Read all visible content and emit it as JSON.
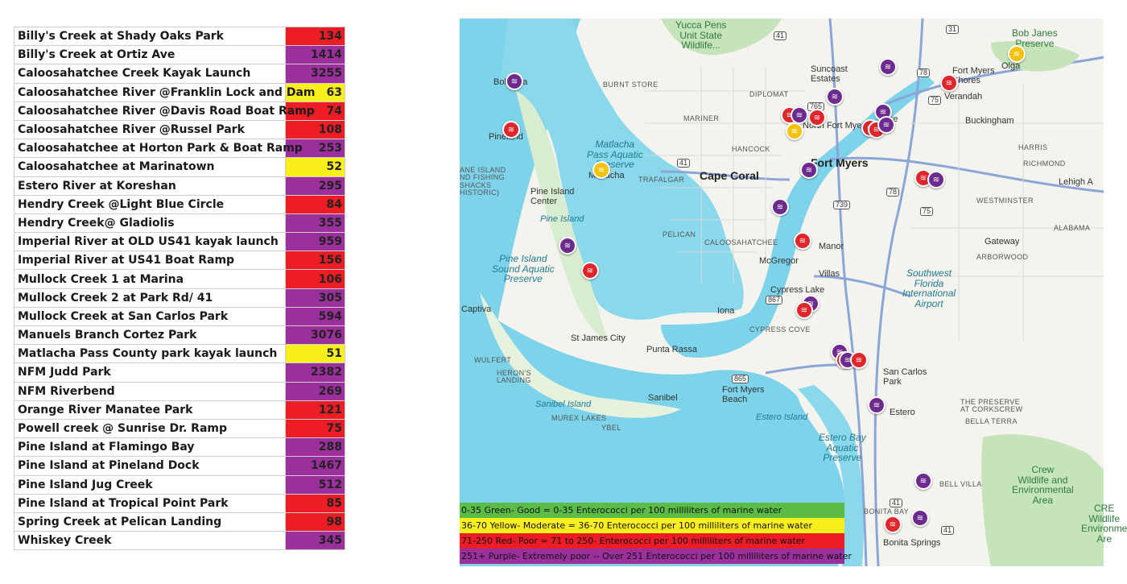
{
  "sites": [
    {
      "name": "Billy's Creek at Shady Oaks Park",
      "value": "134",
      "color": "#ee1c24"
    },
    {
      "name": "Billy's Creek at Ortiz Ave",
      "value": "1414",
      "color": "#9b2f9c"
    },
    {
      "name": "Caloosahatchee Creek Kayak Launch",
      "value": "3255",
      "color": "#9b2f9c"
    },
    {
      "name": "Caloosahatchee River @Franklin Lock and Dam",
      "value": "63",
      "color": "#f8ef1c"
    },
    {
      "name": "Caloosahatchee River @Davis Road Boat Ramp",
      "value": "74",
      "color": "#ee1c24"
    },
    {
      "name": "Caloosahatchee River @Russel Park",
      "value": "108",
      "color": "#ee1c24"
    },
    {
      "name": "Caloosahatchee at Horton Park & Boat Ramp",
      "value": "253",
      "color": "#9b2f9c"
    },
    {
      "name": "Caloosahatchee at Marinatown",
      "value": "52",
      "color": "#f8ef1c"
    },
    {
      "name": "Estero River at Koreshan",
      "value": "295",
      "color": "#9b2f9c"
    },
    {
      "name": "Hendry Creek @Light Blue Circle",
      "value": "84",
      "color": "#ee1c24"
    },
    {
      "name": "Hendry Creek@ Gladiolis",
      "value": "355",
      "color": "#9b2f9c"
    },
    {
      "name": "Imperial River at OLD US41 kayak launch",
      "value": "959",
      "color": "#9b2f9c"
    },
    {
      "name": "Imperial River at US41 Boat Ramp",
      "value": "156",
      "color": "#ee1c24"
    },
    {
      "name": "Mullock Creek 1 at Marina",
      "value": "106",
      "color": "#ee1c24"
    },
    {
      "name": "Mullock Creek 2 at Park Rd/ 41",
      "value": "305",
      "color": "#9b2f9c"
    },
    {
      "name": "Mullock Creek at San Carlos Park",
      "value": "594",
      "color": "#9b2f9c"
    },
    {
      "name": "Manuels Branch Cortez Park",
      "value": "3076",
      "color": "#9b2f9c"
    },
    {
      "name": "Matlacha Pass County park kayak launch",
      "value": "51",
      "color": "#f8ef1c"
    },
    {
      "name": "NFM Judd Park",
      "value": "2382",
      "color": "#9b2f9c"
    },
    {
      "name": "NFM Riverbend",
      "value": "269",
      "color": "#9b2f9c"
    },
    {
      "name": "Orange River Manatee Park",
      "value": "121",
      "color": "#ee1c24"
    },
    {
      "name": "Powell creek @ Sunrise Dr. Ramp",
      "value": "75",
      "color": "#ee1c24"
    },
    {
      "name": "Pine Island at Flamingo Bay",
      "value": "288",
      "color": "#9b2f9c"
    },
    {
      "name": "Pine Island at Pineland Dock",
      "value": "1467",
      "color": "#9b2f9c"
    },
    {
      "name": "Pine Island Jug Creek",
      "value": "512",
      "color": "#9b2f9c"
    },
    {
      "name": "Pine Island at Tropical Point Park",
      "value": "85",
      "color": "#ee1c24"
    },
    {
      "name": "Spring Creek at Pelican Landing",
      "value": "98",
      "color": "#ee1c24"
    },
    {
      "name": "Whiskey Creek",
      "value": "345",
      "color": "#9b2f9c"
    }
  ],
  "map": {
    "places": {
      "yucca_pens": "Yucca Pens\nUnit State\nWildlife...",
      "bob_janes": "Bob Janes\nPreserve",
      "olga": "Olga",
      "fort_myers_shores": "Fort Myers\nShores",
      "verandah": "Verandah",
      "suncoast": "Suncoast\nEstates",
      "burnt_store": "BURNT STORE",
      "diplomat": "DIPLOMAT",
      "bokeelia": "Bokeelia",
      "mariner": "MARINER",
      "tice": "Tice",
      "buckingham": "Buckingham",
      "pineland": "Pineland",
      "matlacha_pass": "Matlacha\nPass Aquatic\nPreserve",
      "hancock": "HANCOCK",
      "harris": "HARRIS",
      "north_fort_myers": "North Fort Myers",
      "island_fishing": "ANE ISLAND\nND FISHING\nSHACKS\nHISTORIC)",
      "matlacha": "Matlacha",
      "trafalgar": "TRAFALGAR",
      "cape_coral": "Cape Coral",
      "fort_myers": "Fort Myers",
      "richmond": "RICHMOND",
      "lehigh": "Lehigh A",
      "pine_island_center": "Pine Island\nCenter",
      "westminster": "WESTMINSTER",
      "pine_island": "Pine Island",
      "pelican": "PELICAN",
      "caloosahatchee": "CALOOSAHATCHEE",
      "alabama": "ALABAMA",
      "gateway": "Gateway",
      "pine_island_sound": "Pine Island\nSound Aquatic\nPreserve",
      "mcgregor": "McGregor",
      "manor": "Manor",
      "arborwood": "ARBORWOOD",
      "villas": "Villas",
      "cypress_lake": "Cypress Lake",
      "swfl_airport": "Southwest\nFlorida\nInternational\nAirport",
      "captiva": "Captiva",
      "iona": "Iona",
      "cypress_cove": "CYPRESS COVE",
      "st_james": "St James City",
      "punta_rassa": "Punta Rassa",
      "wulfert": "WULFERT",
      "herons_landing": "HERON'S\nLANDING",
      "san_carlos_park": "San Carlos\nPark",
      "fort_myers_beach": "Fort Myers\nBeach",
      "sanibel_island": "Sanibel Island",
      "sanibel": "Sanibel",
      "estero_island": "Estero Island",
      "murex": "MUREX LAKES",
      "ybel": "YBEL",
      "estero": "Estero",
      "preserve_corkscrew": "THE PRESERVE\nAT CORKSCREW",
      "bella_terra": "BELLA TERRA",
      "estero_bay": "Estero Bay\nAquatic\nPreserve",
      "crew": "Crew\nWildlife and\nEnvironmental\nArea",
      "bell_villa": "BELL VILLA",
      "bonita_bay": "BONITA BAY",
      "bonita_springs": "Bonita Springs",
      "crew2": "CRE\nWildlife\nEnvironme\nAre"
    },
    "roads": [
      "41",
      "78",
      "31",
      "75",
      "765",
      "739",
      "867",
      "865",
      "41",
      "75",
      "78",
      "41",
      "41"
    ],
    "legend": [
      {
        "text": "0-35   Green- Good = 0-35 Enterococci per 100 milliliters of marine water",
        "color": "#5bbd47"
      },
      {
        "text": "36-70    Yellow- Moderate = 36-70 Enterococci per 100 milliliters of marine water",
        "color": "#f8ef1c"
      },
      {
        "text": "71-250   Red- Poor = 71 to 250-  Enterococci per 100 milliliters of marine water",
        "color": "#ee1c24"
      },
      {
        "text": "251+   Purple- Extremely poor -- Over 251 Enterococci per 100 milliliters of marine water",
        "color": "#9b2f9c"
      }
    ],
    "pin_colors": {
      "purple": "#6d2b8f",
      "red": "#e0262b",
      "yellow": "#f2c20f"
    },
    "pins": [
      {
        "c": "purple"
      },
      {
        "c": "red"
      },
      {
        "c": "yellow"
      },
      {
        "c": "purple"
      },
      {
        "c": "red"
      },
      {
        "c": "red"
      },
      {
        "c": "purple"
      },
      {
        "c": "purple"
      },
      {
        "c": "purple"
      },
      {
        "c": "red"
      },
      {
        "c": "red"
      },
      {
        "c": "yellow"
      },
      {
        "c": "red"
      },
      {
        "c": "purple"
      },
      {
        "c": "yellow"
      },
      {
        "c": "purple"
      },
      {
        "c": "purple"
      },
      {
        "c": "red"
      },
      {
        "c": "purple"
      },
      {
        "c": "red"
      },
      {
        "c": "purple"
      },
      {
        "c": "red"
      },
      {
        "c": "purple"
      },
      {
        "c": "red"
      },
      {
        "c": "purple"
      },
      {
        "c": "red"
      },
      {
        "c": "purple"
      },
      {
        "c": "purple"
      },
      {
        "c": "purple"
      },
      {
        "c": "red"
      },
      {
        "c": "purple"
      },
      {
        "c": "red"
      }
    ]
  }
}
